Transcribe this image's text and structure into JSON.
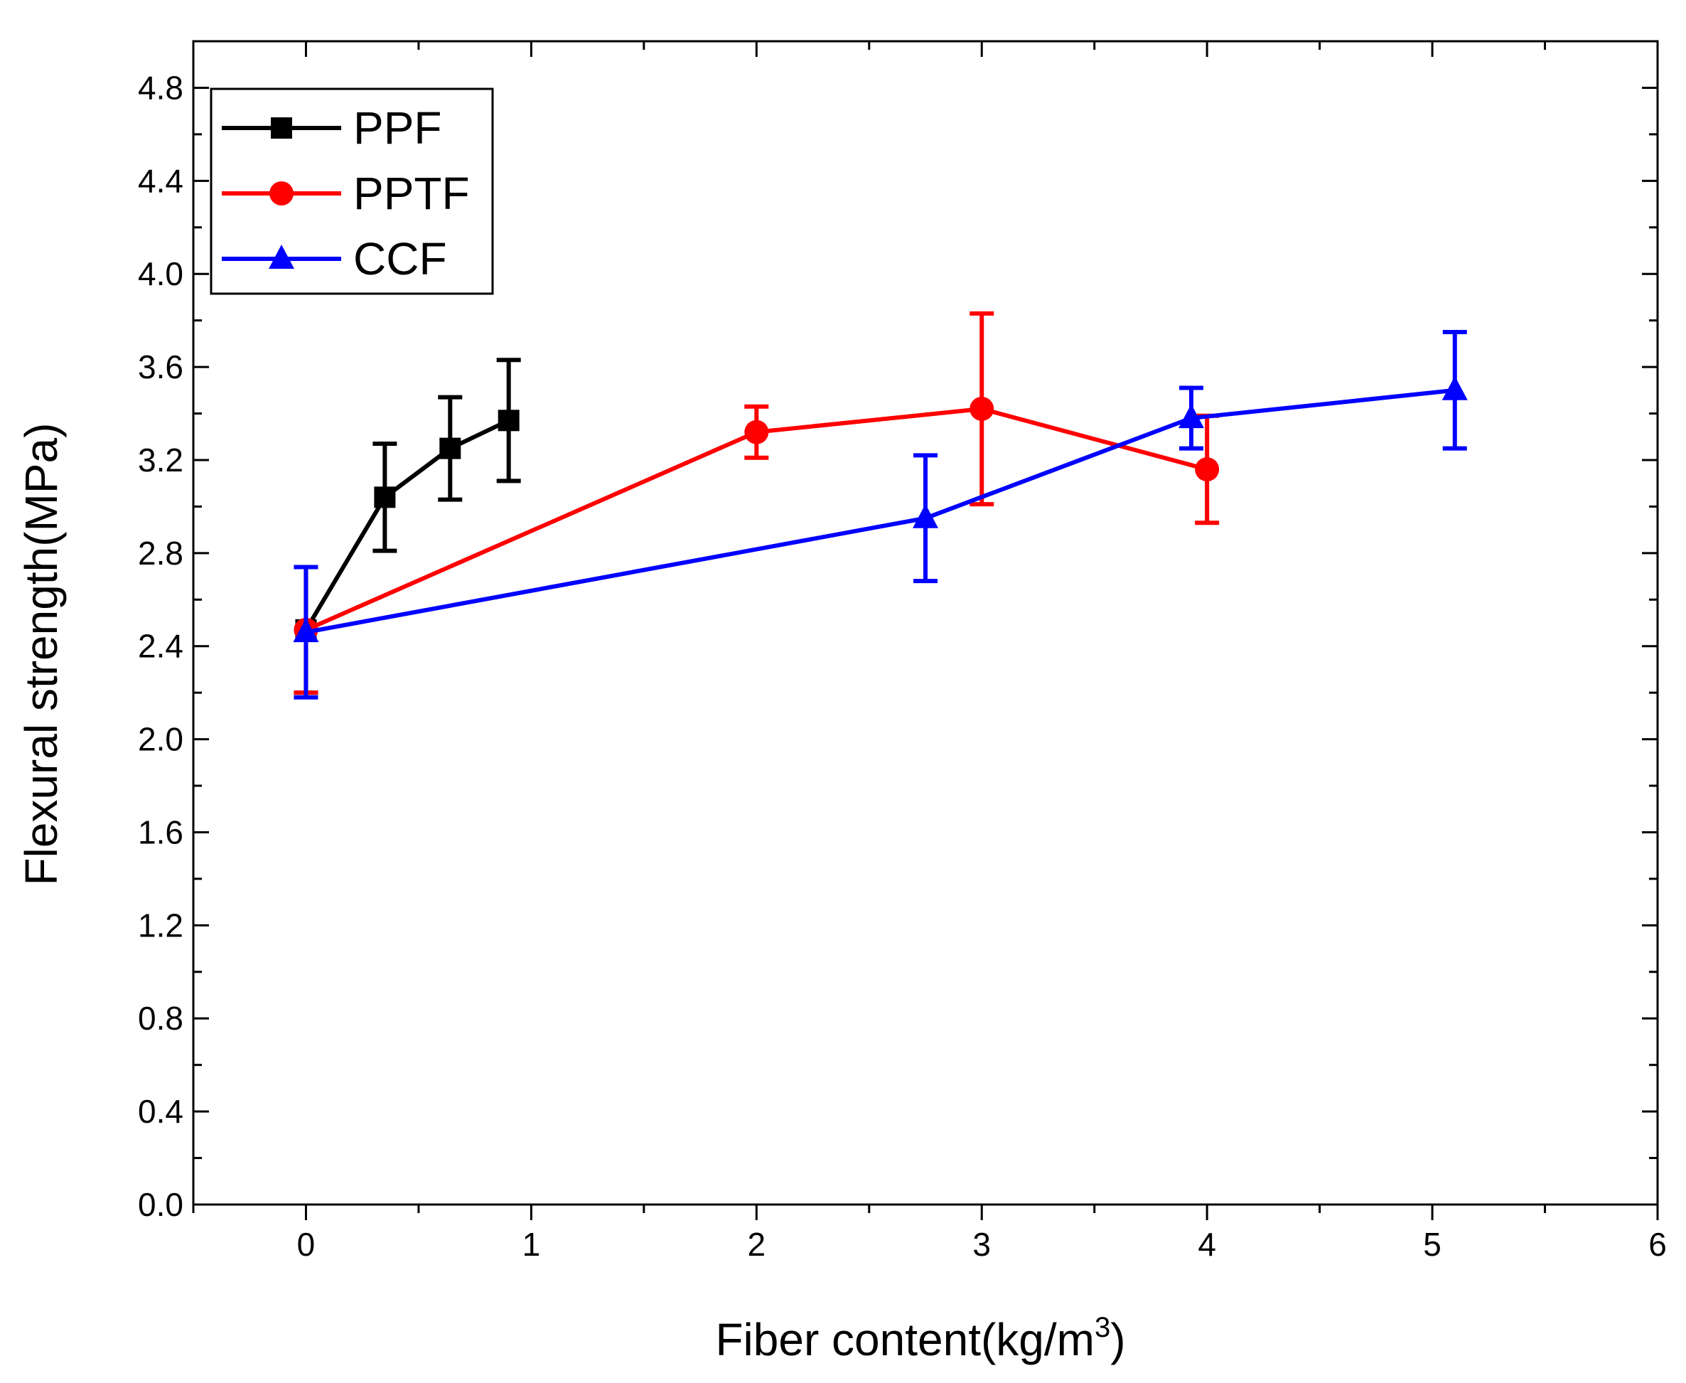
{
  "chart_data": {
    "type": "line",
    "title": "",
    "xlabel_main": "Fiber content(kg/m",
    "xlabel_sup": "3",
    "xlabel_close": ")",
    "ylabel": "Flexural strength(MPa)",
    "xlim": [
      -0.5,
      6
    ],
    "ylim": [
      0,
      5
    ],
    "xticks": [
      0,
      1,
      2,
      3,
      4,
      5,
      6
    ],
    "xtick_labels": [
      "0",
      "1",
      "2",
      "3",
      "4",
      "5",
      "6"
    ],
    "yticks": [
      0,
      0.4,
      0.8,
      1.2,
      1.6,
      2.0,
      2.4,
      2.8,
      3.2,
      3.6,
      4.0,
      4.4,
      4.8
    ],
    "ytick_labels": [
      "0.0",
      "0.4",
      "0.8",
      "1.2",
      "1.6",
      "2.0",
      "2.4",
      "2.8",
      "3.2",
      "3.6",
      "4.0",
      "4.4",
      "4.8"
    ],
    "grid": false,
    "legend_position": "top-left",
    "series": [
      {
        "name": "PPF",
        "color": "#000000",
        "marker": "square",
        "x": [
          0,
          0.35,
          0.64,
          0.9
        ],
        "y": [
          2.47,
          3.04,
          3.25,
          3.37
        ],
        "err": [
          0.27,
          0.23,
          0.22,
          0.26
        ]
      },
      {
        "name": "PPTF",
        "color": "#ff0000",
        "marker": "circle",
        "x": [
          0,
          2,
          3,
          4
        ],
        "y": [
          2.47,
          3.32,
          3.42,
          3.16
        ],
        "err": [
          0.27,
          0.11,
          0.41,
          0.23
        ]
      },
      {
        "name": "CCF",
        "color": "#0000ff",
        "marker": "triangle",
        "x": [
          0,
          2.75,
          3.93,
          5.1
        ],
        "y": [
          2.46,
          2.95,
          3.38,
          3.5
        ],
        "err": [
          0.28,
          0.27,
          0.13,
          0.25
        ]
      }
    ]
  }
}
